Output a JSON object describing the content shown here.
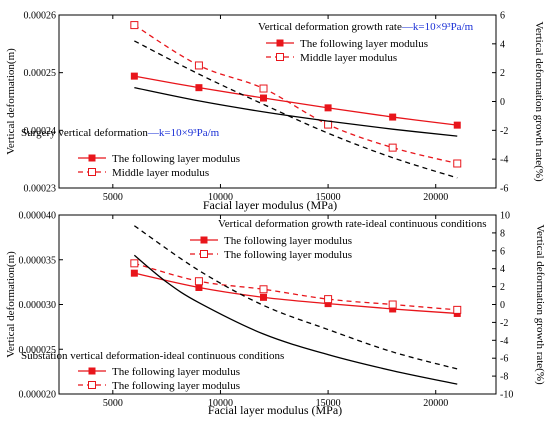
{
  "colors": {
    "red": "#e8151b",
    "black": "#000000",
    "blue": "#1a2fd6"
  },
  "chart_data": [
    {
      "type": "line",
      "xlabel": "Facial layer modulus (MPa)",
      "ylabel_left": "Vertical deformation(m)",
      "ylabel_right": "Vertical deformation growth rate(%)",
      "xlim": [
        2500,
        22800
      ],
      "xticks": [
        "5000",
        "10000",
        "15000",
        "20000"
      ],
      "ylim_left": [
        0.00023,
        0.00026
      ],
      "yticks_left": [
        "0.00023",
        "0.00024",
        "0.00025",
        "0.00026"
      ],
      "ylim_right": [
        -6,
        6
      ],
      "yticks_right": [
        "-6",
        "-4",
        "-2",
        "0",
        "2",
        "4",
        "6"
      ],
      "legend_top": {
        "title_prefix": "Vertical deformation growth rate",
        "title_suffix": "—k=10×9³Pa/m",
        "items": [
          "The following layer modulus",
          "Middle layer modulus"
        ]
      },
      "legend_bottom": {
        "title_prefix": "Surgery vertical deformation",
        "title_suffix": "—k=10×9³Pa/m",
        "items": [
          "The following layer modulus",
          "Middle layer modulus"
        ]
      },
      "series": [
        {
          "axis": "left",
          "style": "red-solid-filled",
          "x": [
            6000,
            9000,
            12000,
            15000,
            18000,
            21000
          ],
          "values": [
            0.0002494,
            0.0002474,
            0.0002456,
            0.0002439,
            0.0002423,
            0.0002409
          ]
        },
        {
          "axis": "right",
          "style": "red-dash-open",
          "x": [
            6000,
            9000,
            12000,
            15000,
            18000,
            21000
          ],
          "values": [
            5.3,
            2.5,
            0.9,
            -1.6,
            -3.2,
            -4.3
          ]
        },
        {
          "axis": "left",
          "style": "black-solid",
          "x": [
            6000,
            9000,
            12000,
            15000,
            18000,
            21000
          ],
          "values": [
            0.0002474,
            0.0002451,
            0.0002432,
            0.0002416,
            0.0002402,
            0.000239
          ]
        },
        {
          "axis": "right",
          "style": "black-dash",
          "x": [
            6000,
            9000,
            12000,
            15000,
            18000,
            21000
          ],
          "values": [
            4.2,
            1.9,
            -0.2,
            -2.2,
            -3.9,
            -5.3
          ]
        }
      ]
    },
    {
      "type": "line",
      "xlabel": "Facial layer modulus (MPa)",
      "ylabel_left": "Vertical deformation(m)",
      "ylabel_right": "Vertical deformation growth rate(%)",
      "xlim": [
        2500,
        22800
      ],
      "xticks": [
        "5000",
        "10000",
        "15000",
        "20000"
      ],
      "ylim_left": [
        2e-05,
        4e-05
      ],
      "yticks_left": [
        "0.000020",
        "0.000025",
        "0.000030",
        "0.000035",
        "0.000040"
      ],
      "ylim_right": [
        -10,
        10
      ],
      "yticks_right": [
        "-10",
        "-8",
        "-6",
        "-4",
        "-2",
        "0",
        "2",
        "4",
        "6",
        "8",
        "10"
      ],
      "legend_top": {
        "title": "Vertical deformation growth rate-ideal continuous conditions",
        "items": [
          "The following layer modulus",
          "The following layer modulus"
        ]
      },
      "legend_bottom": {
        "title": "Substation vertical deformation-ideal continuous conditions",
        "items": [
          "The following layer modulus",
          "The following layer modulus"
        ]
      },
      "series": [
        {
          "axis": "left",
          "style": "red-solid-filled",
          "x": [
            6000,
            9000,
            12000,
            15000,
            18000,
            21000
          ],
          "values": [
            3.35e-05,
            3.19e-05,
            3.08e-05,
            3.01e-05,
            2.95e-05,
            2.9e-05
          ]
        },
        {
          "axis": "right",
          "style": "red-dash-open",
          "x": [
            6000,
            9000,
            12000,
            15000,
            18000,
            21000
          ],
          "values": [
            4.6,
            2.6,
            1.7,
            0.6,
            0.0,
            -0.6
          ]
        },
        {
          "axis": "left",
          "style": "black-solid",
          "x": [
            6000,
            7500,
            9000,
            12000,
            15000,
            18000,
            21000
          ],
          "values": [
            3.55e-05,
            3.25e-05,
            3.02e-05,
            2.67e-05,
            2.44e-05,
            2.26e-05,
            2.11e-05
          ]
        },
        {
          "axis": "right",
          "style": "black-dash",
          "x": [
            6000,
            9000,
            12000,
            15000,
            18000,
            21000
          ],
          "values": [
            8.8,
            3.8,
            -0.1,
            -2.8,
            -5.3,
            -7.2
          ]
        }
      ]
    }
  ]
}
